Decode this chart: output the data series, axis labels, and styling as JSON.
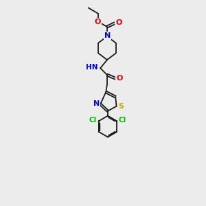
{
  "background_color": "#ececec",
  "bond_color": "#1a1a1a",
  "bond_width": 1.3,
  "atom_colors": {
    "N": "#0000ee",
    "O": "#dd0000",
    "S": "#ccaa00",
    "Cl": "#00bb00",
    "C": "#1a1a1a"
  },
  "font_size": 8.0,
  "xlim": [
    0,
    10
  ],
  "ylim": [
    0,
    14
  ]
}
